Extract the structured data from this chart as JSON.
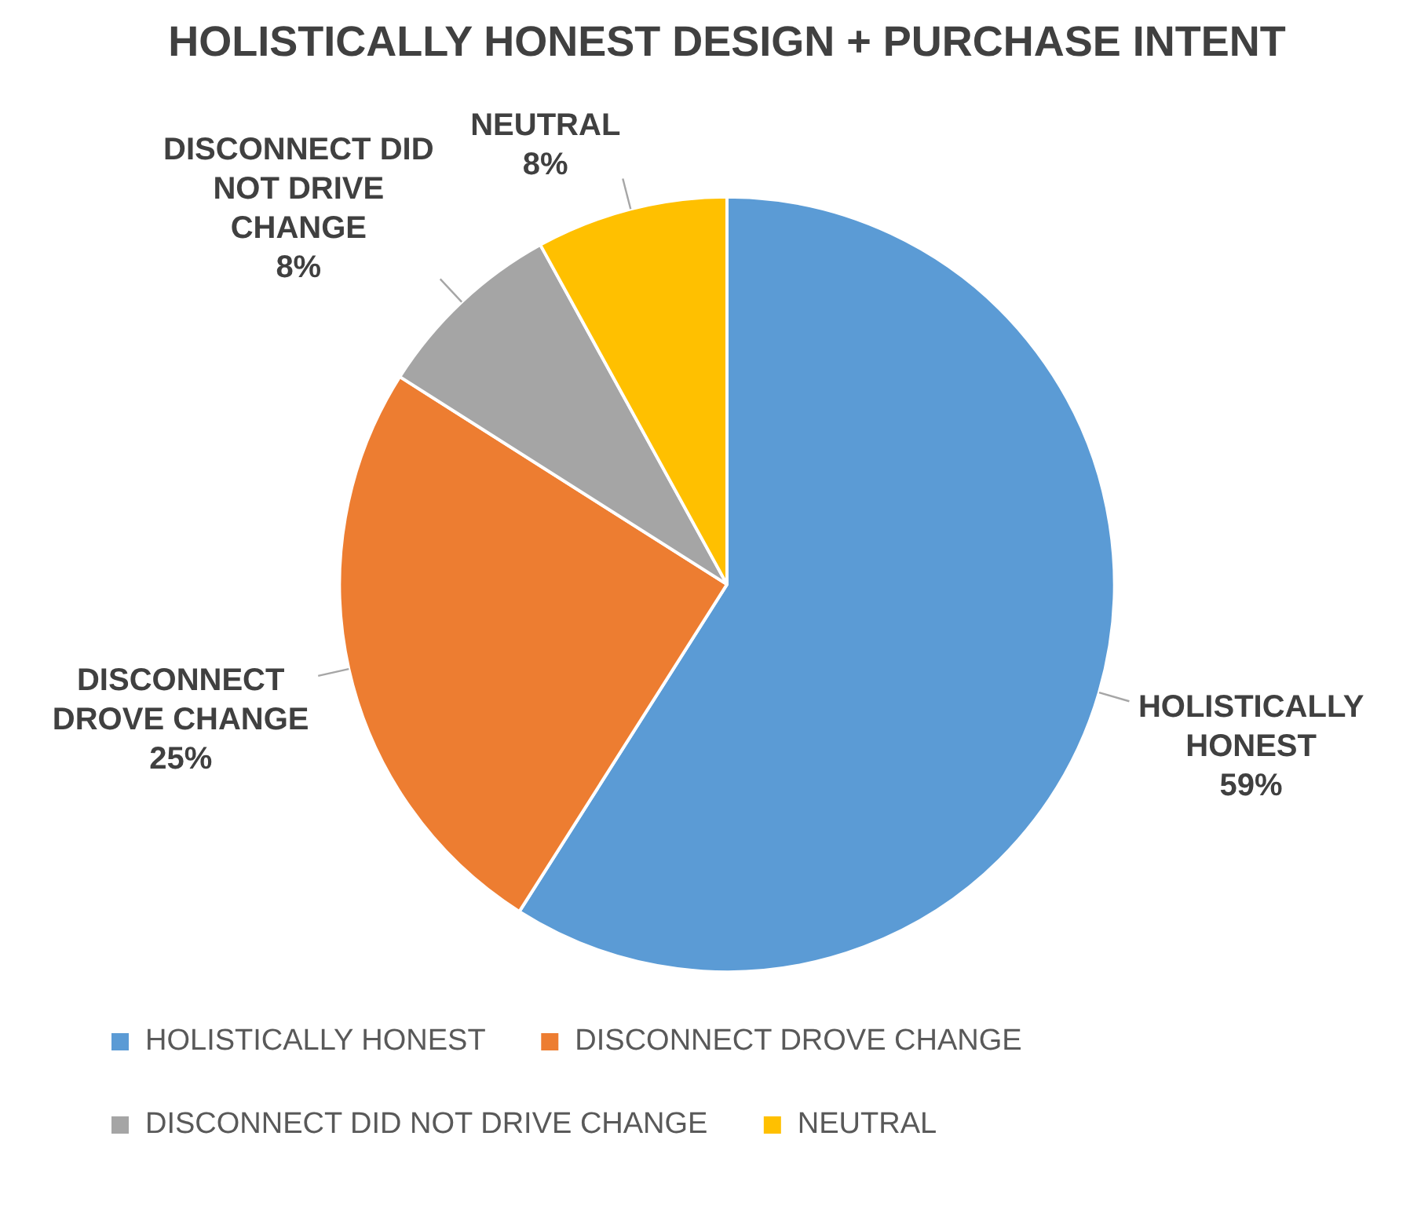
{
  "chart_data": {
    "type": "pie",
    "title": "HOLISTICALLY HONEST DESIGN + PURCHASE INTENT",
    "categories": [
      "HOLISTICALLY HONEST",
      "DISCONNECT DROVE CHANGE",
      "DISCONNECT DID NOT DRIVE CHANGE",
      "NEUTRAL"
    ],
    "values": [
      59,
      25,
      8,
      8
    ],
    "colors": [
      "#5b9bd5",
      "#ed7d31",
      "#a5a5a5",
      "#ffc000"
    ],
    "value_labels": [
      "59%",
      "25%",
      "8%",
      "8%"
    ],
    "legend": "bottom"
  }
}
